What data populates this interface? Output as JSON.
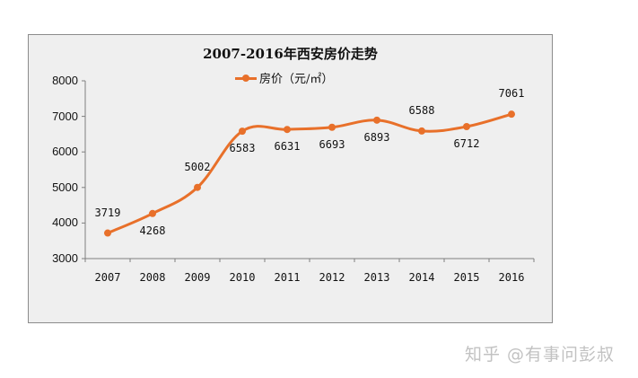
{
  "chart_data": {
    "type": "line",
    "title": "2007-2016年西安房价走势",
    "xlabel": "",
    "ylabel": "",
    "categories": [
      "2007",
      "2008",
      "2009",
      "2010",
      "2011",
      "2012",
      "2013",
      "2014",
      "2015",
      "2016"
    ],
    "series": [
      {
        "name": "房价（元/㎡）",
        "values": [
          3719,
          4268,
          5002,
          6583,
          6631,
          6693,
          6893,
          6588,
          6712,
          7061
        ],
        "color": "#e8702a"
      }
    ],
    "yticks": [
      "8000",
      "7000",
      "6000",
      "5000",
      "4000",
      "3000"
    ],
    "ylim": [
      3000,
      8000
    ],
    "grid": false,
    "legend_position": "top",
    "data_labels": true,
    "smooth": true
  },
  "colors": {
    "line": "#e8702a",
    "axis": "#7f7f7f",
    "plot_bg": "#efefef",
    "border": "#8c8c8c"
  },
  "watermark": {
    "text": "知乎 @有事问彭叔"
  }
}
